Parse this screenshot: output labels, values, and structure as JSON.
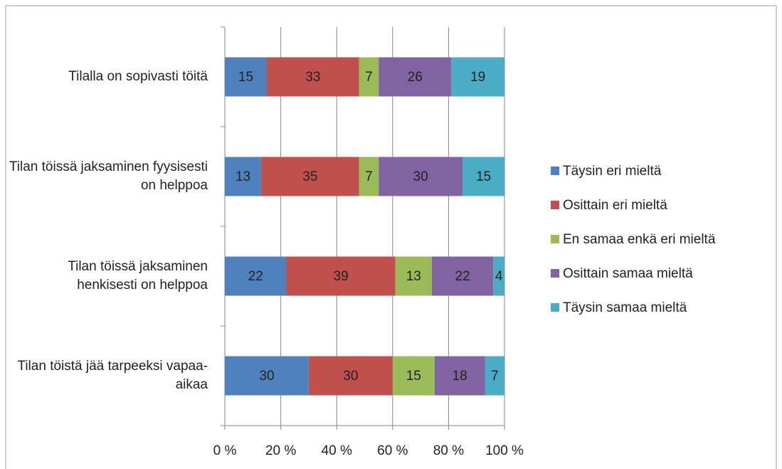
{
  "chart_data": {
    "type": "stacked_bar_horizontal",
    "categories": [
      "Tilalla on sopivasti töitä",
      "Tilan töissä jaksaminen fyysisesti on helppoa",
      "Tilan töissä jaksaminen henkisesti on helppoa",
      "Tilan töistä jää tarpeeksi vapaa-aikaa"
    ],
    "series": [
      {
        "name": "Täysin eri mieltä",
        "color": "#4f81bd",
        "values": [
          15,
          13,
          22,
          30
        ]
      },
      {
        "name": "Osittain eri mieltä",
        "color": "#c0504d",
        "values": [
          33,
          35,
          39,
          30
        ]
      },
      {
        "name": "En samaa enkä eri mieltä",
        "color": "#9bbb59",
        "values": [
          7,
          7,
          13,
          15
        ]
      },
      {
        "name": "Osittain samaa mieltä",
        "color": "#8064a2",
        "values": [
          26,
          30,
          22,
          18
        ]
      },
      {
        "name": "Täysin samaa mieltä",
        "color": "#4bacc6",
        "values": [
          19,
          15,
          4,
          7
        ]
      }
    ],
    "xlim": [
      0,
      100
    ],
    "xticks": [
      {
        "value": 0,
        "label": "0 %"
      },
      {
        "value": 20,
        "label": "20 %"
      },
      {
        "value": 40,
        "label": "40 %"
      },
      {
        "value": 60,
        "label": "60 %"
      },
      {
        "value": 80,
        "label": "80 %"
      },
      {
        "value": 100,
        "label": "100 %"
      }
    ],
    "grid": true,
    "legend": "right"
  }
}
